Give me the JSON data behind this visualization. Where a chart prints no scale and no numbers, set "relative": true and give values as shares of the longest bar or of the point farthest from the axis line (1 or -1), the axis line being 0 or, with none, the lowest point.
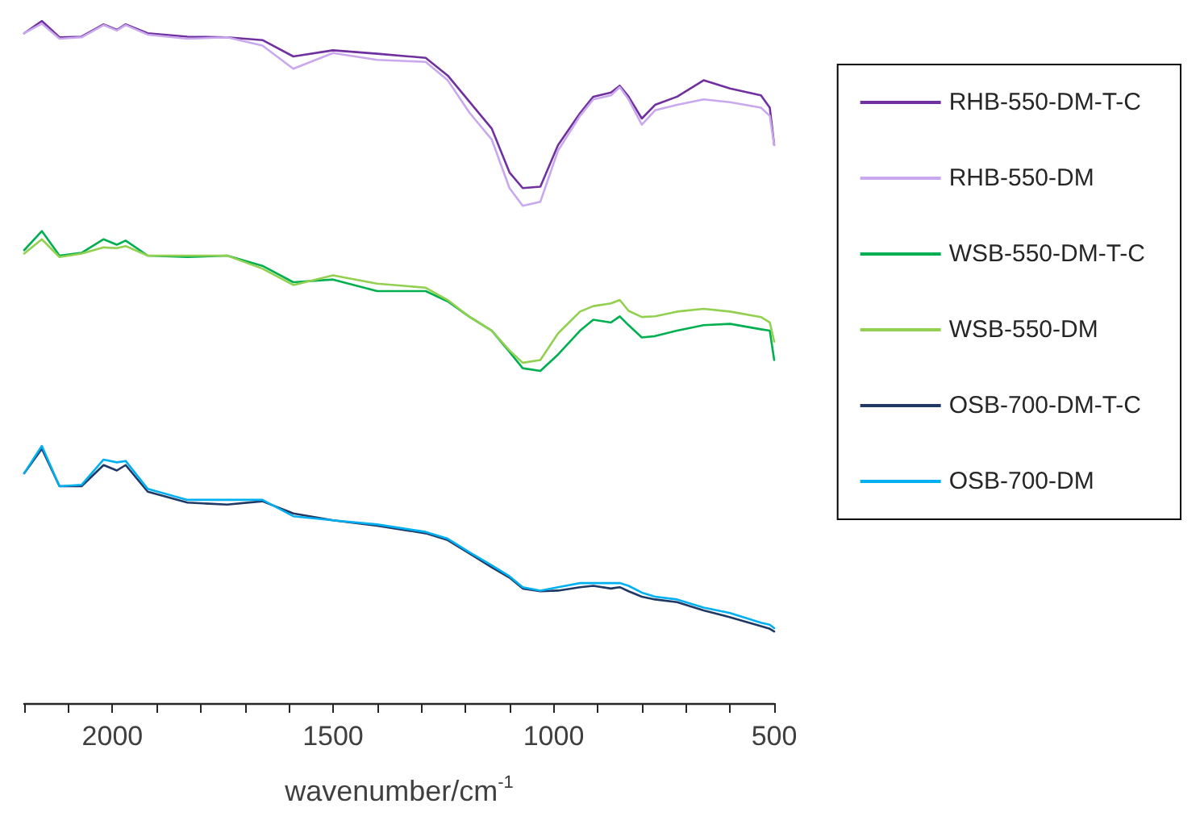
{
  "chart_data": {
    "type": "line",
    "relative": true,
    "xlabel": "wavenumber/cm$^{-1}$",
    "x": [
      2200,
      2160,
      2120,
      2070,
      2020,
      1990,
      1970,
      1920,
      1830,
      1740,
      1660,
      1590,
      1500,
      1400,
      1290,
      1240,
      1190,
      1140,
      1100,
      1070,
      1030,
      990,
      940,
      910,
      870,
      850,
      830,
      800,
      770,
      720,
      660,
      600,
      530,
      510,
      500
    ],
    "xlim": [
      2200,
      500
    ],
    "xticks": [
      {
        "value": 2200,
        "label": null
      },
      {
        "value": 2100,
        "label": null
      },
      2000,
      {
        "value": 1900,
        "label": null
      },
      {
        "value": 1800,
        "label": null
      },
      {
        "value": 1700,
        "label": null
      },
      {
        "value": 1600,
        "label": null
      },
      1500,
      {
        "value": 1400,
        "label": null
      },
      {
        "value": 1300,
        "label": null
      },
      {
        "value": 1200,
        "label": null
      },
      {
        "value": 1100,
        "label": null
      },
      1000,
      {
        "value": 900,
        "label": null
      },
      {
        "value": 800,
        "label": null
      },
      {
        "value": 700,
        "label": null
      },
      {
        "value": 600,
        "label": null
      },
      500
    ],
    "grid": false,
    "legend": "right",
    "marker": "none",
    "line_style": "solid",
    "series": [
      {
        "name": "RHB-550-DM-T-C",
        "color": "#7030a0",
        "values": [
          0.982,
          1.0,
          0.976,
          0.977,
          0.995,
          0.987,
          0.995,
          0.982,
          0.977,
          0.976,
          0.972,
          0.948,
          0.957,
          0.952,
          0.946,
          0.92,
          0.881,
          0.842,
          0.778,
          0.755,
          0.757,
          0.818,
          0.865,
          0.889,
          0.895,
          0.905,
          0.889,
          0.857,
          0.877,
          0.889,
          0.913,
          0.901,
          0.891,
          0.873,
          0.818
        ]
      },
      {
        "name": "RHB-550-DM",
        "color": "#c9a8ee",
        "values": [
          0.982,
          0.996,
          0.974,
          0.976,
          0.994,
          0.986,
          0.994,
          0.98,
          0.974,
          0.976,
          0.964,
          0.93,
          0.953,
          0.943,
          0.94,
          0.913,
          0.865,
          0.826,
          0.755,
          0.729,
          0.735,
          0.81,
          0.861,
          0.885,
          0.891,
          0.903,
          0.885,
          0.848,
          0.869,
          0.877,
          0.885,
          0.881,
          0.873,
          0.861,
          0.818
        ]
      },
      {
        "name": "WSB-550-DM-T-C",
        "color": "#00b050",
        "values": [
          0.664,
          0.692,
          0.656,
          0.66,
          0.68,
          0.672,
          0.678,
          0.656,
          0.654,
          0.656,
          0.641,
          0.617,
          0.621,
          0.604,
          0.604,
          0.589,
          0.566,
          0.546,
          0.515,
          0.491,
          0.487,
          0.511,
          0.546,
          0.562,
          0.558,
          0.567,
          0.554,
          0.536,
          0.538,
          0.546,
          0.554,
          0.556,
          0.548,
          0.546,
          0.503
        ]
      },
      {
        "name": "WSB-550-DM",
        "color": "#92d050",
        "values": [
          0.659,
          0.68,
          0.654,
          0.659,
          0.668,
          0.667,
          0.67,
          0.656,
          0.656,
          0.656,
          0.637,
          0.613,
          0.627,
          0.615,
          0.609,
          0.591,
          0.566,
          0.546,
          0.517,
          0.499,
          0.503,
          0.542,
          0.574,
          0.582,
          0.586,
          0.591,
          0.575,
          0.566,
          0.567,
          0.574,
          0.578,
          0.574,
          0.566,
          0.558,
          0.53
        ]
      },
      {
        "name": "OSB-700-DM-T-C",
        "color": "#1f3864",
        "values": [
          0.337,
          0.373,
          0.318,
          0.318,
          0.349,
          0.341,
          0.349,
          0.31,
          0.294,
          0.291,
          0.296,
          0.278,
          0.268,
          0.26,
          0.249,
          0.239,
          0.219,
          0.199,
          0.184,
          0.168,
          0.164,
          0.165,
          0.17,
          0.172,
          0.168,
          0.17,
          0.164,
          0.156,
          0.152,
          0.148,
          0.136,
          0.126,
          0.113,
          0.109,
          0.105
        ]
      },
      {
        "name": "OSB-700-DM",
        "color": "#00b0f0",
        "values": [
          0.337,
          0.377,
          0.318,
          0.32,
          0.357,
          0.353,
          0.355,
          0.314,
          0.298,
          0.298,
          0.298,
          0.274,
          0.268,
          0.262,
          0.251,
          0.241,
          0.221,
          0.202,
          0.186,
          0.17,
          0.165,
          0.17,
          0.176,
          0.176,
          0.176,
          0.176,
          0.172,
          0.162,
          0.156,
          0.152,
          0.14,
          0.132,
          0.118,
          0.115,
          0.11
        ]
      }
    ]
  }
}
